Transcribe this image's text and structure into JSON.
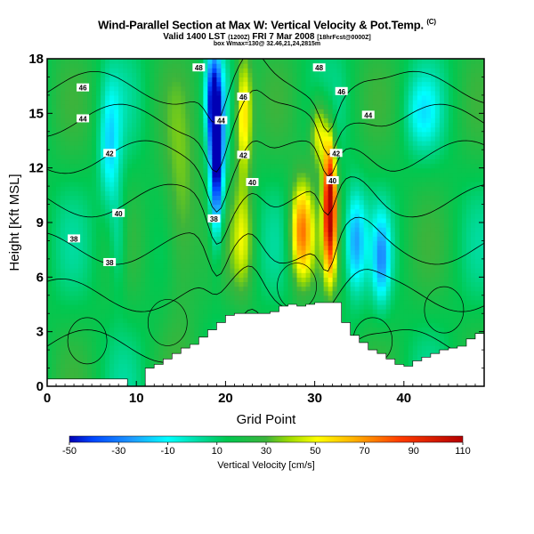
{
  "chart_data": {
    "type": "heatmap",
    "title": "Wind-Parallel Section at Max W: Vertical Velocity & Pot.Temp.",
    "title_mark": "(C)",
    "subtitle_main": "Valid 1400 LST",
    "subtitle_small1": "(1200Z)",
    "subtitle_date": "FRI 7 Mar 2008",
    "subtitle_small2": "[18hrFcst@0000Z]",
    "subtitle_line3": "box Wmax=130@ 32.46,21,24,2815m",
    "xlabel": "Grid Point",
    "ylabel": "Height [Kft MSL]",
    "xlim": [
      0,
      49
    ],
    "ylim": [
      0,
      18
    ],
    "x_ticks": [
      0,
      10,
      20,
      30,
      40
    ],
    "y_ticks": [
      0,
      3,
      6,
      9,
      12,
      15,
      18
    ],
    "colorbar": {
      "label": "Vertical Velocity [cm/s]",
      "min": -50,
      "max": 110,
      "ticks": [
        -50,
        -30,
        -10,
        10,
        30,
        50,
        70,
        90,
        110
      ]
    },
    "contour_labels": [
      {
        "x": 4,
        "y": 16.4,
        "text": "46"
      },
      {
        "x": 4,
        "y": 14.7,
        "text": "44"
      },
      {
        "x": 7,
        "y": 12.8,
        "text": "42"
      },
      {
        "x": 8,
        "y": 9.5,
        "text": "40"
      },
      {
        "x": 3,
        "y": 8.1,
        "text": "38"
      },
      {
        "x": 7,
        "y": 6.8,
        "text": "38"
      },
      {
        "x": 17,
        "y": 17.5,
        "text": "48"
      },
      {
        "x": 22,
        "y": 15.9,
        "text": "46"
      },
      {
        "x": 19.5,
        "y": 14.6,
        "text": "44"
      },
      {
        "x": 22,
        "y": 12.7,
        "text": "42"
      },
      {
        "x": 23,
        "y": 11.2,
        "text": "40"
      },
      {
        "x": 18.7,
        "y": 9.2,
        "text": "38"
      },
      {
        "x": 30.5,
        "y": 17.5,
        "text": "48"
      },
      {
        "x": 33,
        "y": 16.2,
        "text": "46"
      },
      {
        "x": 36,
        "y": 14.9,
        "text": "44"
      },
      {
        "x": 32.4,
        "y": 12.8,
        "text": "42"
      },
      {
        "x": 32,
        "y": 11.3,
        "text": "40"
      }
    ],
    "terrain": [
      [
        0,
        0.4
      ],
      [
        1,
        0.4
      ],
      [
        2,
        0.4
      ],
      [
        3,
        0.4
      ],
      [
        4,
        0.4
      ],
      [
        5,
        0.4
      ],
      [
        6,
        0.4
      ],
      [
        7,
        0.4
      ],
      [
        8,
        0.4
      ],
      [
        9,
        0
      ],
      [
        10,
        0
      ],
      [
        11,
        1.0
      ],
      [
        12,
        1.2
      ],
      [
        13,
        1.5
      ],
      [
        14,
        1.8
      ],
      [
        15,
        2.1
      ],
      [
        16,
        2.3
      ],
      [
        17,
        2.7
      ],
      [
        18,
        3.1
      ],
      [
        19,
        3.5
      ],
      [
        20,
        3.9
      ],
      [
        21,
        4.0
      ],
      [
        22,
        4.0
      ],
      [
        23,
        4.0
      ],
      [
        24,
        4.0
      ],
      [
        25,
        4.1
      ],
      [
        26,
        4.4
      ],
      [
        27,
        4.5
      ],
      [
        28,
        4.4
      ],
      [
        29,
        4.5
      ],
      [
        30,
        4.6
      ],
      [
        31,
        4.6
      ],
      [
        32,
        4.6
      ],
      [
        33,
        3.5
      ],
      [
        34,
        2.8
      ],
      [
        35,
        2.4
      ],
      [
        36,
        2.0
      ],
      [
        37,
        1.8
      ],
      [
        38,
        1.5
      ],
      [
        39,
        1.2
      ],
      [
        40,
        1.1
      ],
      [
        41,
        1.4
      ],
      [
        42,
        1.6
      ],
      [
        43,
        1.8
      ],
      [
        44,
        2.0
      ],
      [
        45,
        2.1
      ],
      [
        46,
        2.2
      ],
      [
        47,
        2.6
      ],
      [
        48,
        2.9
      ],
      [
        49,
        2.9
      ]
    ]
  }
}
